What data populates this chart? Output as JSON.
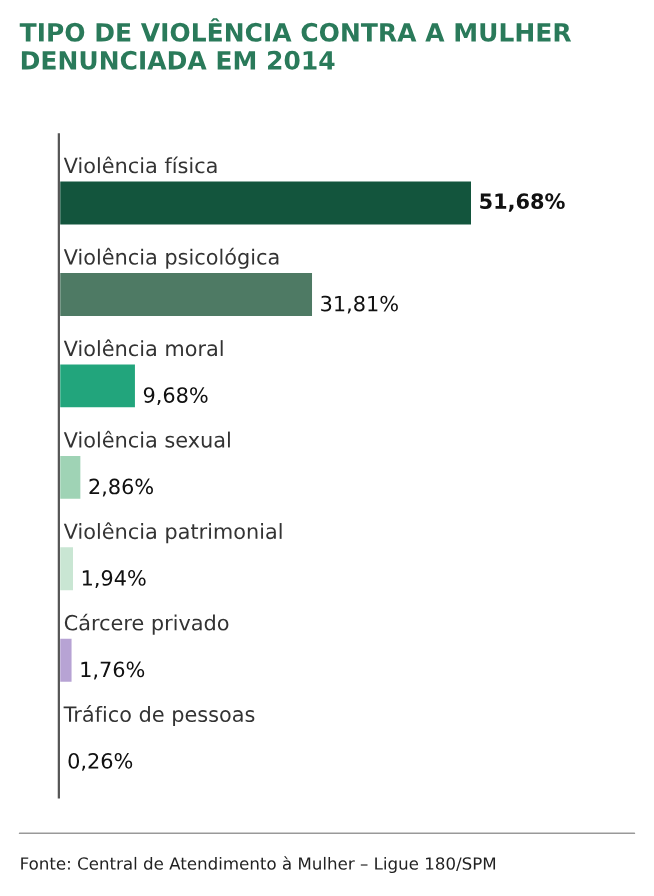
{
  "chart_data": {
    "type": "bar",
    "orientation": "horizontal",
    "title": "TIPO DE VIOLÊNCIA CONTRA A MULHER\nDENUNCIADA EM 2014",
    "categories": [
      "Violência física",
      "Violência psicológica",
      "Violência moral",
      "Violência sexual",
      "Violência patrimonial",
      "Cárcere privado",
      "Tráfico de pessoas"
    ],
    "values": [
      51.68,
      31.81,
      9.68,
      2.86,
      1.94,
      1.76,
      0.26
    ],
    "colors": [
      "#13553d",
      "#4e7a64",
      "#22a57c",
      "#9fd3b5",
      "#c9e6d3",
      "#b7a3d4",
      "#4a4a4a"
    ],
    "value_labels": [
      "51,68%",
      "31,81%",
      "9,68%",
      "2,86%",
      "1,94%",
      "1,76%",
      "0,26%"
    ],
    "annotations": [
      "Fonte: Central de Atendimento à Mulher – Ligue 180/SPM"
    ]
  }
}
